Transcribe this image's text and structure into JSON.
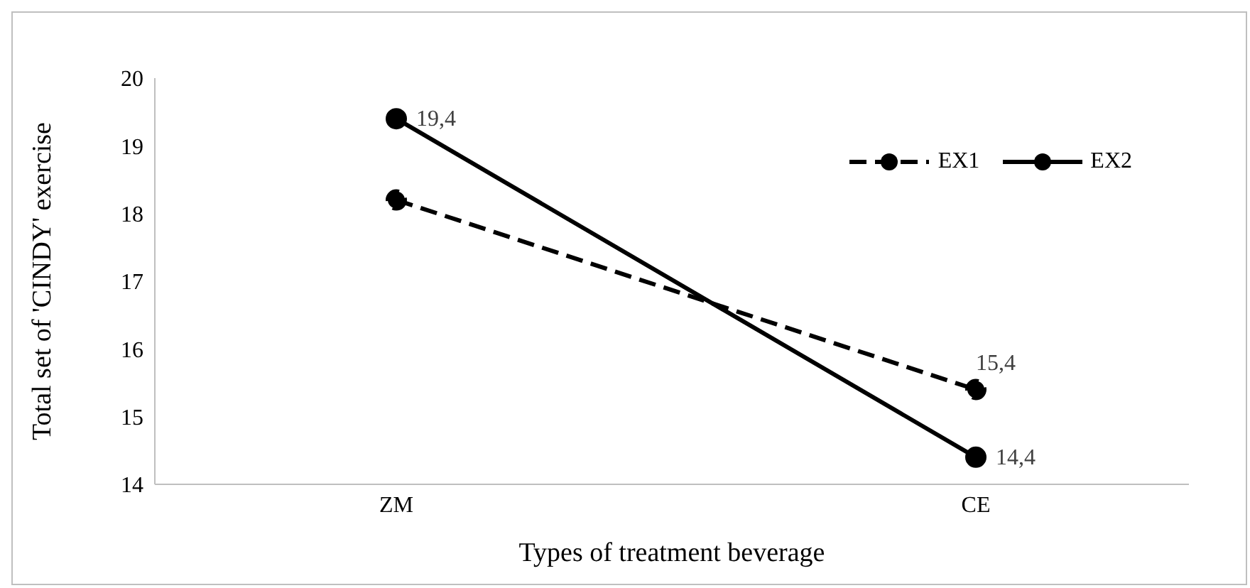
{
  "chart_data": {
    "type": "line",
    "xlabel": "Types of treatment beverage",
    "ylabel": "Total set of 'CINDY' exercise",
    "categories": [
      "ZM",
      "CE"
    ],
    "series": [
      {
        "name": "EX1",
        "color": "#000000",
        "line_style": "dashed",
        "values": [
          18.2,
          15.4
        ],
        "value_labels": [
          null,
          "15,4"
        ]
      },
      {
        "name": "EX2",
        "color": "#000000",
        "line_style": "solid",
        "values": [
          19.4,
          14.4
        ],
        "value_labels": [
          "19,4",
          "14,4"
        ]
      }
    ],
    "ylim": [
      14,
      20
    ],
    "yticks": [
      14,
      15,
      16,
      17,
      18,
      19,
      20
    ],
    "grid": false,
    "legend": "top right",
    "marker": "circle"
  }
}
